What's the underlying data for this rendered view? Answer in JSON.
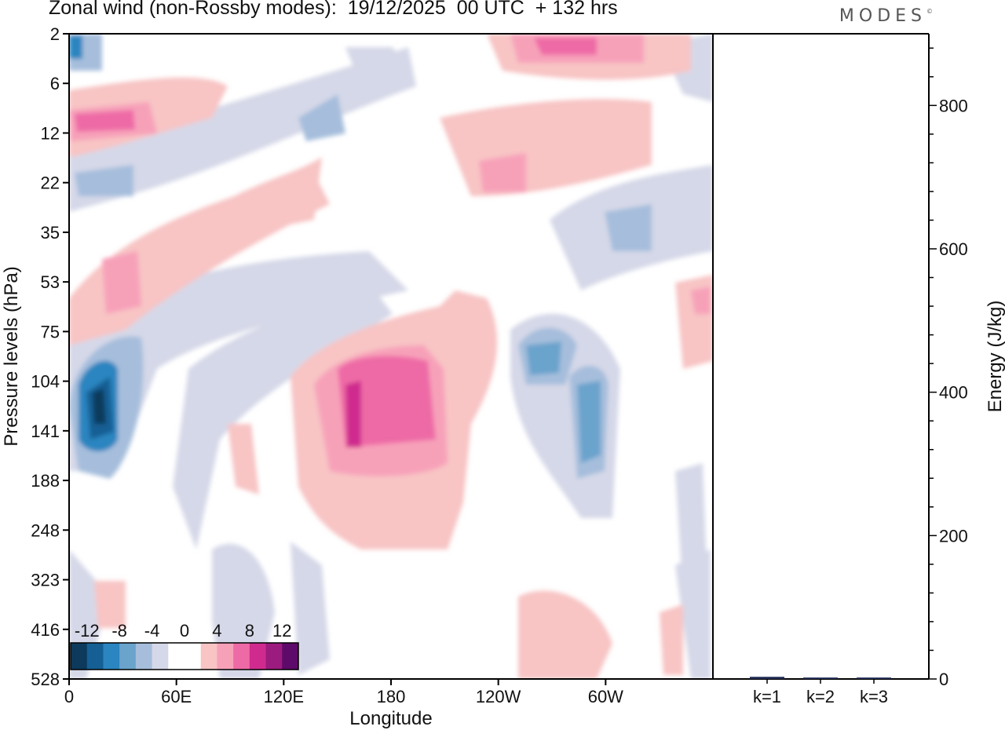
{
  "title": "Zonal wind (non-Rossby modes):  19/12/2025  00 UTC  + 132 hrs",
  "logo": "MODES",
  "logo_mark": "©",
  "chart_data": [
    {
      "type": "heatmap",
      "title": "Zonal wind (non-Rossby modes):  19/12/2025  00 UTC  + 132 hrs",
      "xlabel": "Longitude",
      "ylabel": "Pressure levels (hPa)",
      "x_ticks": [
        "0",
        "60E",
        "120E",
        "180",
        "120W",
        "60W"
      ],
      "x_tick_degrees": [
        0,
        60,
        120,
        180,
        240,
        300
      ],
      "x_range": [
        0,
        360
      ],
      "y_ticks": [
        "2",
        "6",
        "12",
        "22",
        "35",
        "53",
        "75",
        "104",
        "141",
        "188",
        "248",
        "323",
        "416",
        "528"
      ],
      "colorbar": {
        "labels": [
          "-12",
          "-8",
          "-4",
          "0",
          "4",
          "8",
          "12"
        ],
        "colors": [
          "#0d3a5c",
          "#155f94",
          "#2b85c0",
          "#6aa3cc",
          "#a6bedc",
          "#d5d8e8",
          "#ffffff",
          "#ffffff",
          "#f8c4c4",
          "#f7a1b9",
          "#ee6aa6",
          "#cf2b8e",
          "#9c1b7e",
          "#5e0a6a"
        ]
      },
      "features": [
        {
          "name": "jet-core-0E-125hPa",
          "lon": 15,
          "level_index": 7.6,
          "value": -14
        },
        {
          "name": "positive-anomaly-180",
          "lon": 175,
          "level_index": 7.8,
          "value": 9
        },
        {
          "name": "negative-anomaly-60W",
          "lon": 285,
          "level_index": 8.3,
          "value": -8
        },
        {
          "name": "negative-anomaly-130W",
          "lon": 257,
          "level_index": 7.0,
          "value": -6
        },
        {
          "name": "positive-anomaly-upper-0E",
          "lon": 25,
          "level_index": 1.8,
          "value": 9
        },
        {
          "name": "positive-anomaly-upper-150W",
          "lon": 262,
          "level_index": 0.3,
          "value": 8
        }
      ]
    },
    {
      "type": "bar",
      "ylabel": "Energy (J/kg)",
      "categories": [
        "k=1",
        "k=2",
        "k=3"
      ],
      "values": [
        3,
        2,
        2
      ],
      "ylim": [
        0,
        900
      ],
      "y_ticks": [
        "0",
        "200",
        "400",
        "600",
        "800"
      ],
      "y_tick_values": [
        0,
        200,
        400,
        600,
        800
      ]
    }
  ]
}
